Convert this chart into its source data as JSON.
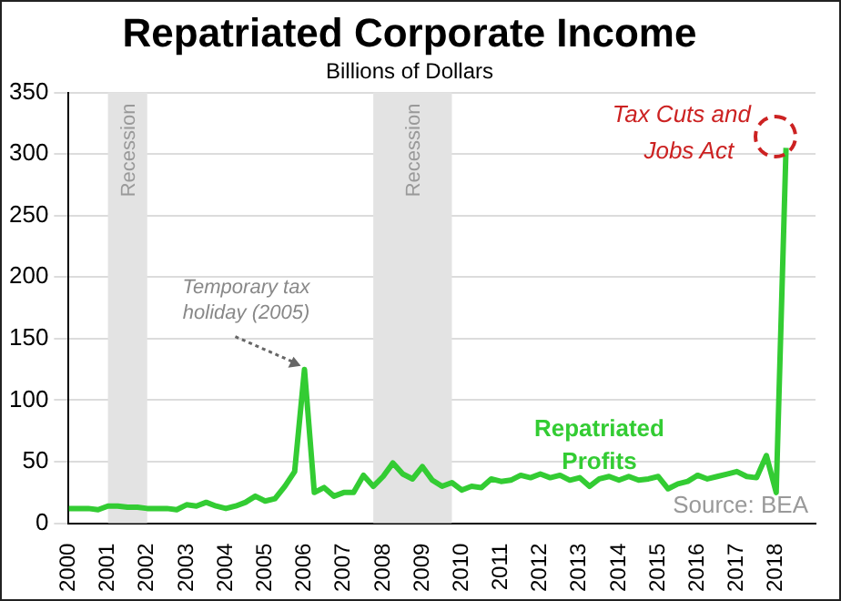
{
  "chart_data": {
    "type": "line",
    "title": "Repatriated Corporate Income",
    "subtitle": "Billions of Dollars",
    "x": [
      2000,
      2000.25,
      2000.5,
      2000.75,
      2001,
      2001.25,
      2001.5,
      2001.75,
      2002,
      2002.25,
      2002.5,
      2002.75,
      2003,
      2003.25,
      2003.5,
      2003.75,
      2004,
      2004.25,
      2004.5,
      2004.75,
      2005,
      2005.25,
      2005.5,
      2005.75,
      2006,
      2006.25,
      2006.5,
      2006.75,
      2007,
      2007.25,
      2007.5,
      2007.75,
      2008,
      2008.25,
      2008.5,
      2008.75,
      2009,
      2009.25,
      2009.5,
      2009.75,
      2010,
      2010.25,
      2010.5,
      2010.75,
      2011,
      2011.25,
      2011.5,
      2011.75,
      2012,
      2012.25,
      2012.5,
      2012.75,
      2013,
      2013.25,
      2013.5,
      2013.75,
      2014,
      2014.25,
      2014.5,
      2014.75,
      2015,
      2015.25,
      2015.5,
      2015.75,
      2016,
      2016.25,
      2016.5,
      2016.75,
      2017,
      2017.25,
      2017.5,
      2017.75,
      2018,
      2018.25
    ],
    "series": [
      {
        "name": "Repatriated Profits",
        "color": "#33cc33",
        "values": [
          12,
          12,
          12,
          11,
          14,
          14,
          13,
          13,
          12,
          12,
          12,
          11,
          15,
          14,
          17,
          14,
          12,
          14,
          17,
          22,
          18,
          20,
          30,
          42,
          125,
          25,
          29,
          22,
          25,
          25,
          39,
          30,
          38,
          49,
          40,
          36,
          46,
          35,
          30,
          33,
          27,
          30,
          29,
          36,
          34,
          35,
          39,
          37,
          40,
          37,
          39,
          35,
          37,
          30,
          36,
          38,
          35,
          38,
          35,
          36,
          38,
          28,
          32,
          34,
          39,
          36,
          38,
          40,
          42,
          38,
          37,
          55,
          25,
          305
        ]
      }
    ],
    "xlim": [
      2000,
      2019
    ],
    "xticks": [
      2000,
      2001,
      2002,
      2003,
      2004,
      2005,
      2006,
      2007,
      2008,
      2009,
      2010,
      2011,
      2012,
      2013,
      2014,
      2015,
      2016,
      2017,
      2018
    ],
    "ylim": [
      0,
      350
    ],
    "yticks": [
      0,
      50,
      100,
      150,
      200,
      250,
      300,
      350
    ],
    "bands": [
      {
        "axis": "x",
        "from": 2001,
        "to": 2002,
        "label": "Recession",
        "color": "#e3e3e3"
      },
      {
        "axis": "x",
        "from": 2007.75,
        "to": 2009.75,
        "label": "Recession",
        "color": "#e3e3e3"
      }
    ],
    "annotations": [
      {
        "text": "Temporary tax holiday (2005)",
        "x": 2006,
        "y": 125
      },
      {
        "text": "Tax Cuts and Jobs Act",
        "x": 2018,
        "y": 305
      },
      "Source: BEA"
    ],
    "grid": "y",
    "legend": false,
    "marker": "none",
    "line_style": "solid"
  }
}
